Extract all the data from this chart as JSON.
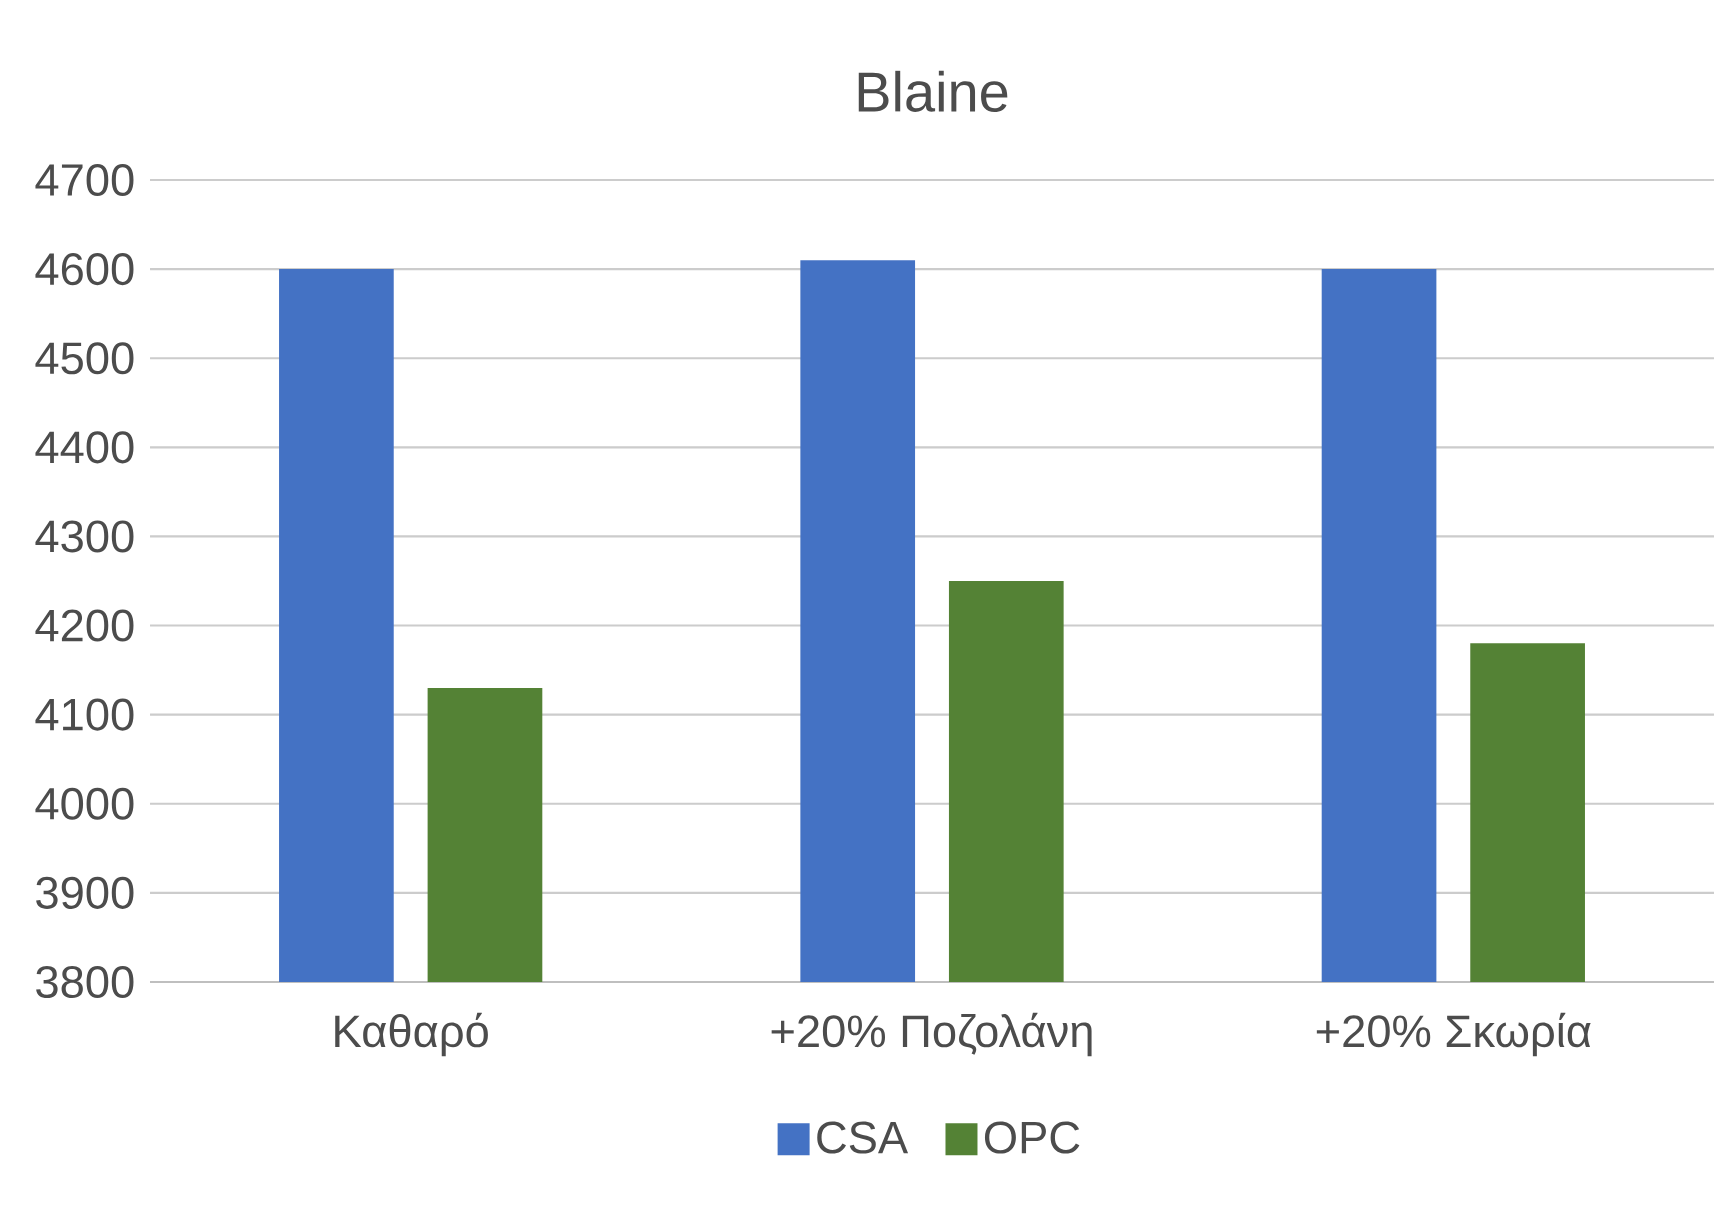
{
  "chart_data": {
    "type": "bar",
    "title": "Blaine",
    "categories": [
      "Καθαρό",
      "+20% Ποζολάνη",
      "+20% Σκωρία"
    ],
    "series": [
      {
        "name": "CSA",
        "color": "#4472c4",
        "values": [
          4600,
          4610,
          4600
        ]
      },
      {
        "name": "OPC",
        "color": "#548235",
        "values": [
          4130,
          4250,
          4180
        ]
      }
    ],
    "ylim": [
      3800,
      4700
    ],
    "yticks": [
      3800,
      3900,
      4000,
      4100,
      4200,
      4300,
      4400,
      4500,
      4600,
      4700
    ],
    "grid": "y",
    "legend": "bottom"
  }
}
